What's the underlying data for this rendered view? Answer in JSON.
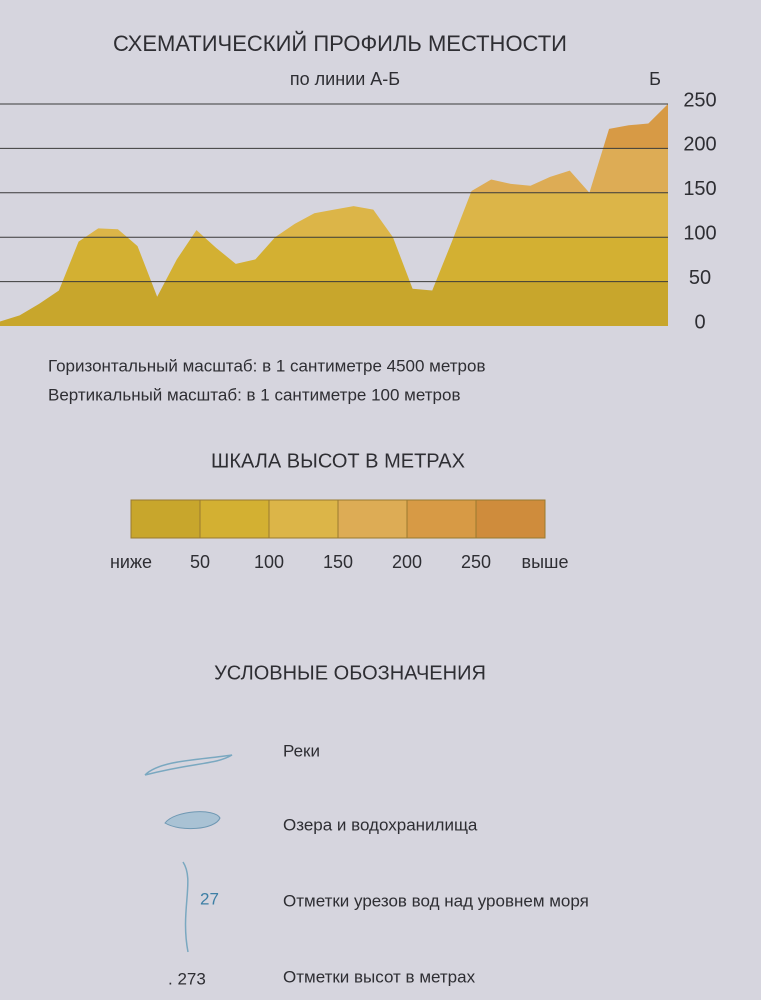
{
  "chart_data": {
    "type": "area",
    "title": "СХЕМАТИЧЕСКИЙ ПРОФИЛЬ МЕСТНОСТИ",
    "subtitle": "по линии А-Б",
    "end_label": "Б",
    "categories": [
      null,
      null,
      null,
      null,
      null,
      null,
      null,
      null,
      null,
      null,
      null,
      null,
      null,
      null,
      null,
      null,
      null,
      null,
      null,
      null,
      null,
      null,
      null,
      null,
      null,
      null,
      null,
      null,
      null,
      null,
      null,
      null,
      null,
      null,
      null
    ],
    "values": [
      5,
      12,
      25,
      40,
      95,
      110,
      109,
      90,
      33,
      75,
      108,
      88,
      70,
      75,
      100,
      115,
      127,
      131,
      135,
      131,
      100,
      42,
      40,
      95,
      152,
      165,
      160,
      158,
      168,
      175,
      150,
      222,
      226,
      228,
      250
    ],
    "ylim": [
      0,
      250
    ],
    "yticks": [
      0,
      50,
      100,
      150,
      200,
      250
    ],
    "grid": true,
    "band_colors": [
      "#c8a62c",
      "#d3b032",
      "#dcb548",
      "#ddac55",
      "#d79a45",
      "#cf8c3c"
    ],
    "scale_notes": [
      "Горизонтальный масштаб: в 1 сантиметре 4500 метров",
      "Вертикальный масштаб: в 1 сантиметре 100 метров"
    ]
  },
  "height_scale": {
    "title": "ШКАЛА ВЫСОТ В МЕТРАХ",
    "labels": [
      "ниже",
      "50",
      "100",
      "150",
      "200",
      "250",
      "выше"
    ]
  },
  "legend": {
    "title": "УСЛОВНЫЕ ОБОЗНАЧЕНИЯ",
    "items": [
      "Реки",
      "Озера и водохранилища",
      "Отметки урезов вод над уровнем моря",
      "Отметки высот в метрах"
    ],
    "water_mark": "27",
    "height_mark": ". 273"
  }
}
